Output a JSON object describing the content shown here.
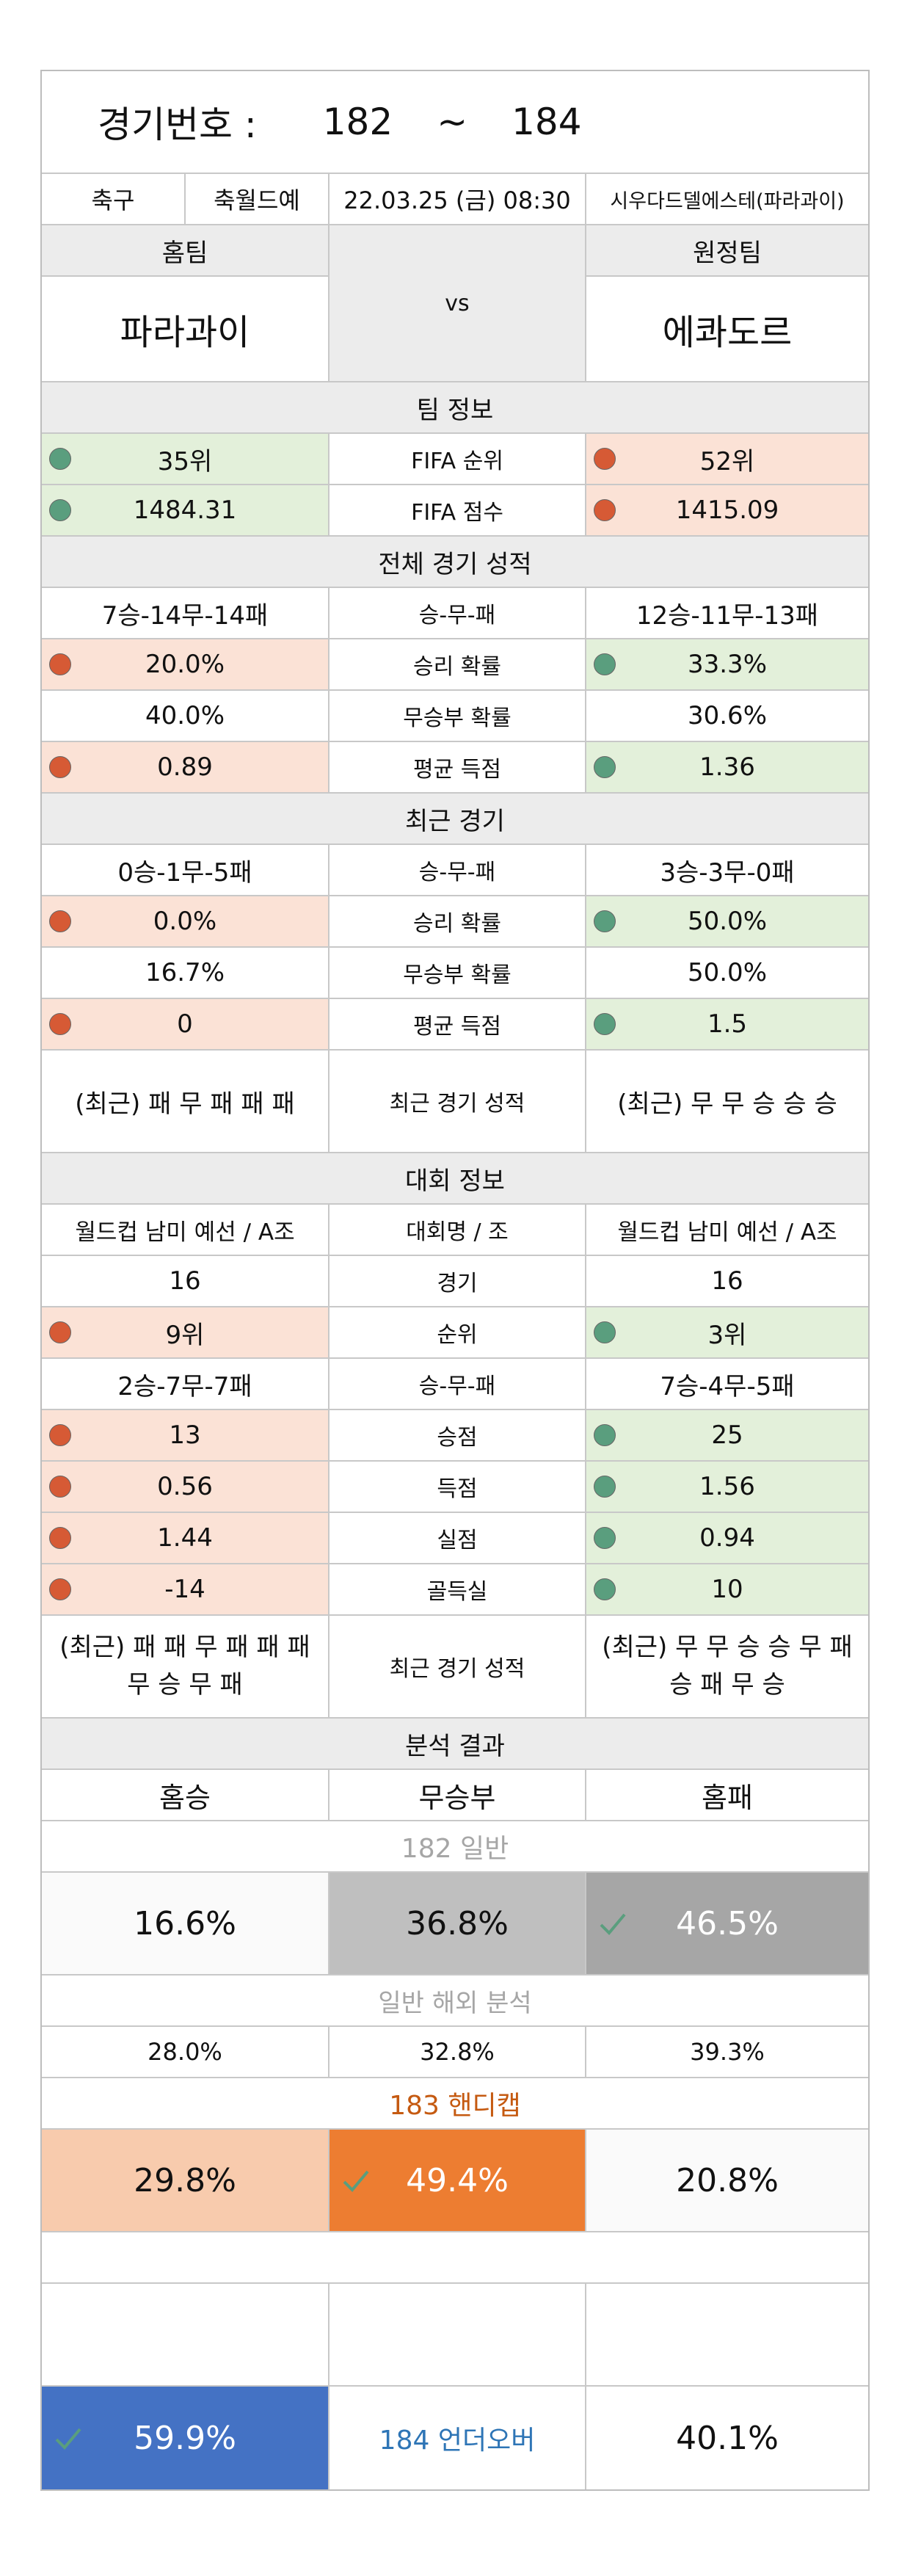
{
  "title": {
    "label": "경기번호 :",
    "start": "182",
    "sep": "~",
    "end": "184"
  },
  "info": {
    "sport": "축구",
    "league": "축월드예",
    "datetime": "22.03.25 (금) 08:30",
    "venue": "시우다드델에스테(파라과이)"
  },
  "teams": {
    "home_label": "홈팀",
    "away_label": "원정팀",
    "vs": "vs",
    "home": "파라과이",
    "away": "에콰도르"
  },
  "team_info": {
    "header": "팀 정보",
    "rows": [
      {
        "home": "35위",
        "label": "FIFA 순위",
        "away": "52위"
      },
      {
        "home": "1484.31",
        "label": "FIFA 점수",
        "away": "1415.09"
      }
    ]
  },
  "overall": {
    "header": "전체 경기 성적",
    "rows": [
      {
        "home": "7승-14무-14패",
        "label": "승-무-패",
        "away": "12승-11무-13패"
      },
      {
        "home": "20.0%",
        "label": "승리 확률",
        "away": "33.3%"
      },
      {
        "home": "40.0%",
        "label": "무승부 확률",
        "away": "30.6%"
      },
      {
        "home": "0.89",
        "label": "평균 득점",
        "away": "1.36"
      }
    ]
  },
  "recent": {
    "header": "최근 경기",
    "rows": [
      {
        "home": "0승-1무-5패",
        "label": "승-무-패",
        "away": "3승-3무-0패"
      },
      {
        "home": "0.0%",
        "label": "승리 확률",
        "away": "50.0%"
      },
      {
        "home": "16.7%",
        "label": "무승부 확률",
        "away": "50.0%"
      },
      {
        "home": "0",
        "label": "평균 득점",
        "away": "1.5"
      }
    ],
    "form": {
      "home": "(최근) 패 무 패 패 패",
      "label": "최근 경기 성적",
      "away": "(최근) 무 무 승 승 승"
    }
  },
  "tournament": {
    "header": "대회 정보",
    "rows": [
      {
        "home": "월드컵 남미 예선 / A조",
        "label": "대회명 / 조",
        "away": "월드컵 남미 예선 / A조"
      },
      {
        "home": "16",
        "label": "경기",
        "away": "16"
      },
      {
        "home": "9위",
        "label": "순위",
        "away": "3위"
      },
      {
        "home": "2승-7무-7패",
        "label": "승-무-패",
        "away": "7승-4무-5패"
      },
      {
        "home": "13",
        "label": "승점",
        "away": "25"
      },
      {
        "home": "0.56",
        "label": "득점",
        "away": "1.56"
      },
      {
        "home": "1.44",
        "label": "실점",
        "away": "0.94"
      },
      {
        "home": "-14",
        "label": "골득실",
        "away": "10"
      }
    ],
    "form": {
      "home": "(최근) 패 패 무 패 패 패 무 승 무 패",
      "label": "최근 경기 성적",
      "away": "(최근) 무 무 승 승 무 패 승 패 무 승"
    }
  },
  "analysis": {
    "header": "분석 결과",
    "cols": {
      "home_win": "홈승",
      "draw": "무승부",
      "home_loss": "홈패"
    },
    "general": {
      "title": "182 일반",
      "home_win": "16.6%",
      "draw": "36.8%",
      "home_loss": "46.5%"
    },
    "overseas": {
      "title": "일반 해외 분석",
      "home_win": "28.0%",
      "draw": "32.8%",
      "home_loss": "39.3%"
    },
    "handicap": {
      "title": "183 핸디캡",
      "home_win": "29.8%",
      "draw": "49.4%",
      "home_loss": "20.8%"
    },
    "underover": {
      "title": "184 언더오버",
      "under": "59.9%",
      "over": "40.1%"
    }
  },
  "colors": {
    "green_bg": "#e3f0da",
    "red_bg": "#fbe2d6",
    "orange": "#ed7d31",
    "blue": "#4472c4",
    "gray_dark": "#a6a6a6",
    "gray_mid": "#bfbfbf",
    "handicap_title": "#c55a11",
    "underover_title": "#2e75b6"
  }
}
